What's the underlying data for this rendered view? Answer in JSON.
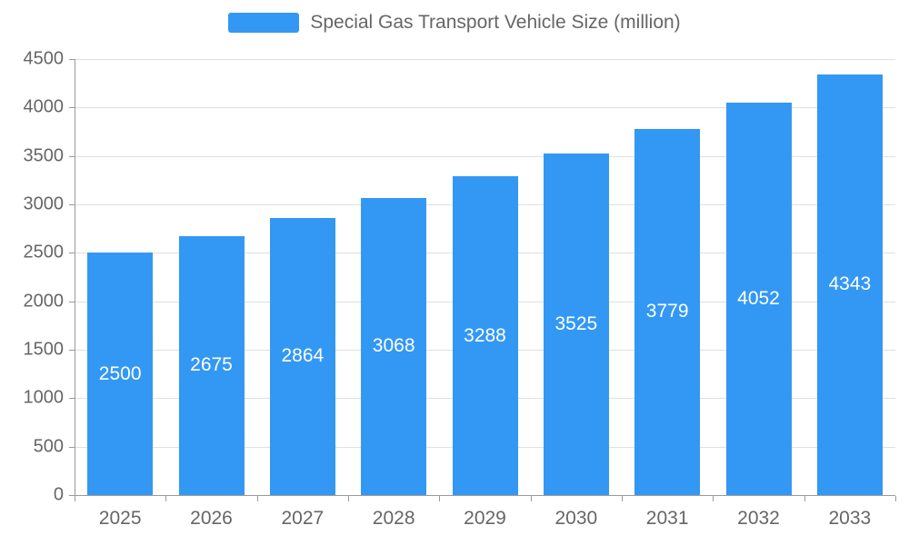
{
  "chart_data": {
    "type": "bar",
    "title": "Special Gas Transport Vehicle Size (million)",
    "legend": {
      "label": "Special Gas Transport Vehicle Size (million)",
      "position": "top"
    },
    "categories": [
      "2025",
      "2026",
      "2027",
      "2028",
      "2029",
      "2030",
      "2031",
      "2032",
      "2033"
    ],
    "series": [
      {
        "name": "Special Gas Transport Vehicle Size (million)",
        "values": [
          2500,
          2675,
          2864,
          3068,
          3288,
          3525,
          3779,
          4052,
          4343
        ]
      }
    ],
    "xlabel": "",
    "ylabel": "",
    "ylim": [
      0,
      4500
    ],
    "y_ticks": [
      0,
      500,
      1000,
      1500,
      2000,
      2500,
      3000,
      3500,
      4000,
      4500
    ],
    "grid": true,
    "colors": {
      "bar": "#3398f3",
      "bar_label": "#ffffff",
      "axis_text": "#666666",
      "grid_line": "#e0e0e0",
      "axis_line": "#9a9a9a"
    }
  }
}
